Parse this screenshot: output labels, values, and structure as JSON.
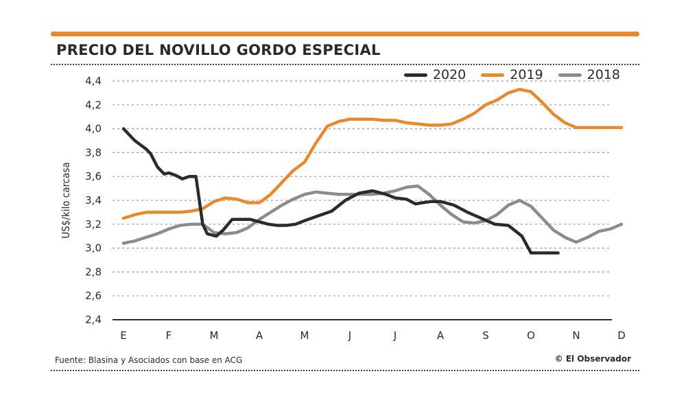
{
  "header": {
    "title": "PRECIO DEL NOVILLO GORDO ESPECIAL"
  },
  "footer": {
    "source": "Fuente: Blasina y Asociados con base en ACG",
    "credit": "© El Observador"
  },
  "colors": {
    "accent": "#e8892f",
    "s2020": "#2b2b2b",
    "s2019": "#e8892f",
    "s2018": "#8c8c8c"
  },
  "chart_data": {
    "type": "line",
    "title": "PRECIO DEL NOVILLO GORDO ESPECIAL",
    "xlabel": "",
    "ylabel": "US$/kilo carcasa",
    "ylim": [
      2.4,
      4.4
    ],
    "xlim": [
      0,
      11
    ],
    "yticks": [
      2.4,
      2.6,
      2.8,
      3.0,
      3.2,
      3.4,
      3.6,
      3.8,
      4.0,
      4.2,
      4.4
    ],
    "ytick_labels": [
      "2,4",
      "2,6",
      "2,8",
      "3,0",
      "3,2",
      "3,4",
      "3,6",
      "3,8",
      "4,0",
      "4,2",
      "4,4"
    ],
    "categories": [
      "E",
      "F",
      "M",
      "A",
      "M",
      "J",
      "J",
      "A",
      "S",
      "O",
      "N",
      "D"
    ],
    "grid": true,
    "legend_position": "top-right",
    "series": [
      {
        "name": "2020",
        "color": "#2b2b2b",
        "x": [
          0,
          0.25,
          0.5,
          0.6,
          0.75,
          0.9,
          1.0,
          1.15,
          1.3,
          1.45,
          1.6,
          1.75,
          1.85,
          1.95,
          2.05,
          2.2,
          2.4,
          2.6,
          2.8,
          3.0,
          3.2,
          3.4,
          3.6,
          3.8,
          4.0,
          4.3,
          4.6,
          4.9,
          5.2,
          5.5,
          5.8,
          6.0,
          6.25,
          6.45,
          6.6,
          6.8,
          7.0,
          7.3,
          7.6,
          7.9,
          8.2,
          8.5,
          8.8,
          9.0,
          9.2,
          9.35,
          9.5,
          9.6
        ],
        "y": [
          4.0,
          3.9,
          3.83,
          3.79,
          3.68,
          3.62,
          3.63,
          3.61,
          3.58,
          3.6,
          3.6,
          3.2,
          3.12,
          3.11,
          3.1,
          3.15,
          3.24,
          3.24,
          3.24,
          3.22,
          3.2,
          3.19,
          3.19,
          3.2,
          3.23,
          3.27,
          3.31,
          3.4,
          3.46,
          3.48,
          3.45,
          3.42,
          3.41,
          3.37,
          3.38,
          3.39,
          3.39,
          3.36,
          3.3,
          3.25,
          3.2,
          3.19,
          3.1,
          2.96,
          2.96,
          2.96,
          2.96,
          2.96
        ]
      },
      {
        "name": "2019",
        "color": "#e8892f",
        "x": [
          0,
          0.25,
          0.5,
          0.75,
          1.0,
          1.25,
          1.5,
          1.75,
          2.0,
          2.25,
          2.5,
          2.75,
          3.0,
          3.25,
          3.5,
          3.75,
          4.0,
          4.25,
          4.5,
          4.75,
          5.0,
          5.25,
          5.5,
          5.75,
          6.0,
          6.25,
          6.5,
          6.75,
          7.0,
          7.25,
          7.5,
          7.75,
          8.0,
          8.25,
          8.5,
          8.75,
          9.0,
          9.25,
          9.5,
          9.75,
          10.0,
          10.25,
          10.5,
          10.75,
          11.0
        ],
        "y": [
          3.25,
          3.28,
          3.3,
          3.3,
          3.3,
          3.3,
          3.31,
          3.33,
          3.39,
          3.42,
          3.41,
          3.38,
          3.38,
          3.45,
          3.55,
          3.65,
          3.72,
          3.88,
          4.02,
          4.06,
          4.08,
          4.08,
          4.08,
          4.07,
          4.07,
          4.05,
          4.04,
          4.03,
          4.03,
          4.04,
          4.08,
          4.13,
          4.2,
          4.24,
          4.3,
          4.33,
          4.31,
          4.22,
          4.12,
          4.05,
          4.01,
          4.01,
          4.01,
          4.01,
          4.01
        ]
      },
      {
        "name": "2018",
        "color": "#8c8c8c",
        "x": [
          0,
          0.25,
          0.5,
          0.75,
          1.0,
          1.25,
          1.5,
          1.75,
          2.0,
          2.25,
          2.5,
          2.75,
          3.0,
          3.25,
          3.5,
          3.75,
          4.0,
          4.25,
          4.5,
          4.75,
          5.0,
          5.25,
          5.5,
          5.75,
          6.0,
          6.25,
          6.5,
          6.75,
          7.0,
          7.25,
          7.5,
          7.75,
          8.0,
          8.25,
          8.5,
          8.75,
          9.0,
          9.25,
          9.5,
          9.75,
          10.0,
          10.25,
          10.5,
          10.75,
          11.0
        ],
        "y": [
          3.04,
          3.06,
          3.09,
          3.12,
          3.16,
          3.19,
          3.2,
          3.2,
          3.13,
          3.12,
          3.13,
          3.17,
          3.24,
          3.3,
          3.36,
          3.41,
          3.45,
          3.47,
          3.46,
          3.45,
          3.45,
          3.45,
          3.45,
          3.46,
          3.48,
          3.51,
          3.52,
          3.45,
          3.36,
          3.28,
          3.22,
          3.21,
          3.23,
          3.28,
          3.36,
          3.4,
          3.35,
          3.25,
          3.15,
          3.09,
          3.05,
          3.09,
          3.14,
          3.16,
          3.2
        ]
      }
    ]
  }
}
